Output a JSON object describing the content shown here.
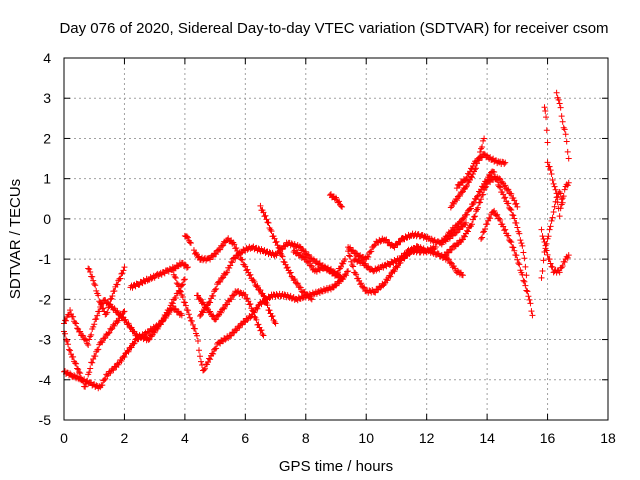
{
  "chart_data": {
    "type": "scatter",
    "title": "Day 076 of 2020, Sidereal Day-to-day VTEC variation (SDTVAR) for receiver csom",
    "xlabel": "GPS time / hours",
    "ylabel": "SDTVAR / TECUs",
    "xlim": [
      0,
      18
    ],
    "ylim": [
      -5,
      4
    ],
    "xticks": [
      0,
      2,
      4,
      6,
      8,
      10,
      12,
      14,
      16,
      18
    ],
    "yticks": [
      -5,
      -4,
      -3,
      -2,
      -1,
      0,
      1,
      2,
      3,
      4
    ],
    "grid": true,
    "marker": "+",
    "color": "#ff0000",
    "tracks": [
      [
        [
          0.0,
          -2.6
        ],
        [
          0.2,
          -2.3
        ],
        [
          0.5,
          -2.8
        ],
        [
          0.8,
          -3.1
        ],
        [
          1.0,
          -2.6
        ],
        [
          1.3,
          -2.0
        ],
        [
          1.6,
          -2.2
        ],
        [
          2.0,
          -2.5
        ],
        [
          2.4,
          -2.9
        ],
        [
          2.8,
          -3.0
        ],
        [
          3.2,
          -2.6
        ],
        [
          3.6,
          -2.2
        ],
        [
          3.9,
          -2.4
        ]
      ],
      [
        [
          0.0,
          -2.8
        ],
        [
          0.2,
          -3.3
        ],
        [
          0.5,
          -3.8
        ],
        [
          0.7,
          -4.2
        ],
        [
          0.9,
          -3.6
        ],
        [
          1.2,
          -3.1
        ],
        [
          1.5,
          -2.8
        ],
        [
          1.8,
          -2.5
        ],
        [
          2.0,
          -2.3
        ]
      ],
      [
        [
          0.0,
          -3.8
        ],
        [
          0.3,
          -3.9
        ],
        [
          0.6,
          -4.0
        ],
        [
          0.9,
          -4.1
        ],
        [
          1.2,
          -4.2
        ],
        [
          1.4,
          -3.9
        ],
        [
          1.8,
          -3.6
        ],
        [
          2.1,
          -3.3
        ],
        [
          2.4,
          -3.0
        ],
        [
          2.8,
          -2.8
        ],
        [
          3.2,
          -2.6
        ],
        [
          3.5,
          -2.2
        ],
        [
          3.8,
          -1.8
        ],
        [
          4.0,
          -1.5
        ]
      ],
      [
        [
          0.8,
          -1.2
        ],
        [
          1.0,
          -1.6
        ],
        [
          1.2,
          -2.1
        ],
        [
          1.4,
          -2.4
        ],
        [
          1.5,
          -2.1
        ],
        [
          1.7,
          -1.7
        ],
        [
          1.9,
          -1.4
        ],
        [
          2.0,
          -1.2
        ]
      ],
      [
        [
          2.2,
          -1.7
        ],
        [
          2.5,
          -1.6
        ],
        [
          2.8,
          -1.5
        ],
        [
          3.1,
          -1.4
        ],
        [
          3.4,
          -1.3
        ],
        [
          3.7,
          -1.2
        ],
        [
          3.9,
          -1.1
        ],
        [
          4.1,
          -1.2
        ]
      ],
      [
        [
          3.6,
          -1.3
        ],
        [
          3.9,
          -1.9
        ],
        [
          4.2,
          -2.5
        ],
        [
          4.4,
          -2.9
        ],
        [
          4.5,
          -3.4
        ],
        [
          4.6,
          -3.8
        ],
        [
          4.8,
          -3.5
        ],
        [
          5.1,
          -3.1
        ],
        [
          5.5,
          -2.9
        ],
        [
          5.9,
          -2.6
        ],
        [
          6.2,
          -2.4
        ],
        [
          6.5,
          -2.1
        ],
        [
          6.9,
          -1.9
        ],
        [
          7.3,
          -1.9
        ],
        [
          7.7,
          -2.0
        ],
        [
          8.1,
          -1.9
        ],
        [
          8.5,
          -1.8
        ],
        [
          8.9,
          -1.7
        ],
        [
          9.2,
          -1.5
        ],
        [
          9.4,
          -1.3
        ]
      ],
      [
        [
          4.0,
          -0.4
        ],
        [
          4.1,
          -0.5
        ],
        [
          4.2,
          -0.6
        ]
      ],
      [
        [
          4.3,
          -0.8
        ],
        [
          4.5,
          -1.0
        ],
        [
          4.8,
          -1.0
        ],
        [
          5.1,
          -0.8
        ],
        [
          5.4,
          -0.5
        ],
        [
          5.6,
          -0.6
        ],
        [
          5.8,
          -0.9
        ],
        [
          6.0,
          -1.2
        ],
        [
          6.3,
          -1.6
        ],
        [
          6.6,
          -1.9
        ],
        [
          6.8,
          -2.3
        ],
        [
          7.0,
          -2.6
        ]
      ],
      [
        [
          4.4,
          -1.9
        ],
        [
          4.7,
          -2.2
        ],
        [
          5.0,
          -2.5
        ],
        [
          5.2,
          -2.3
        ],
        [
          5.5,
          -2.0
        ],
        [
          5.7,
          -1.8
        ],
        [
          6.0,
          -1.9
        ],
        [
          6.2,
          -2.2
        ],
        [
          6.4,
          -2.6
        ],
        [
          6.6,
          -2.9
        ]
      ],
      [
        [
          4.5,
          -2.4
        ],
        [
          4.8,
          -2.1
        ],
        [
          5.1,
          -1.6
        ],
        [
          5.4,
          -1.3
        ],
        [
          5.6,
          -1.0
        ],
        [
          5.9,
          -0.8
        ],
        [
          6.2,
          -0.7
        ],
        [
          6.6,
          -0.8
        ],
        [
          7.0,
          -0.9
        ],
        [
          7.4,
          -0.6
        ],
        [
          7.8,
          -0.7
        ],
        [
          8.2,
          -1.0
        ],
        [
          8.6,
          -1.2
        ],
        [
          9.0,
          -1.4
        ],
        [
          9.3,
          -1.0
        ]
      ],
      [
        [
          6.5,
          0.3
        ],
        [
          6.7,
          0.0
        ],
        [
          6.9,
          -0.4
        ],
        [
          7.1,
          -0.7
        ],
        [
          7.3,
          -1.1
        ],
        [
          7.6,
          -1.5
        ],
        [
          7.9,
          -1.8
        ],
        [
          8.2,
          -2.0
        ]
      ],
      [
        [
          7.6,
          -0.8
        ],
        [
          8.0,
          -1.0
        ],
        [
          8.3,
          -1.3
        ],
        [
          8.6,
          -1.2
        ],
        [
          8.9,
          -1.3
        ],
        [
          9.2,
          -1.5
        ]
      ],
      [
        [
          8.8,
          0.6
        ],
        [
          9.0,
          0.5
        ],
        [
          9.2,
          0.3
        ]
      ],
      [
        [
          9.4,
          -0.8
        ],
        [
          9.6,
          -1.3
        ],
        [
          9.8,
          -1.6
        ],
        [
          10.0,
          -1.8
        ],
        [
          10.3,
          -1.8
        ],
        [
          10.6,
          -1.6
        ],
        [
          10.9,
          -1.3
        ],
        [
          11.2,
          -1.0
        ],
        [
          11.5,
          -0.8
        ],
        [
          11.8,
          -0.8
        ],
        [
          12.1,
          -0.8
        ],
        [
          12.4,
          -0.9
        ],
        [
          12.7,
          -1.0
        ],
        [
          13.0,
          -1.3
        ],
        [
          13.2,
          -1.4
        ]
      ],
      [
        [
          9.4,
          -0.7
        ],
        [
          9.7,
          -0.9
        ],
        [
          10.0,
          -1.0
        ],
        [
          10.3,
          -0.6
        ],
        [
          10.6,
          -0.5
        ],
        [
          10.9,
          -0.7
        ],
        [
          11.2,
          -0.5
        ],
        [
          11.5,
          -0.4
        ],
        [
          11.8,
          -0.4
        ],
        [
          12.1,
          -0.5
        ],
        [
          12.4,
          -0.6
        ],
        [
          12.7,
          -0.5
        ],
        [
          13.0,
          -0.3
        ],
        [
          13.3,
          -0.1
        ]
      ],
      [
        [
          9.6,
          -1.0
        ],
        [
          9.9,
          -1.1
        ],
        [
          10.2,
          -1.3
        ],
        [
          10.5,
          -1.2
        ],
        [
          10.8,
          -1.1
        ],
        [
          11.1,
          -1.0
        ],
        [
          11.4,
          -0.8
        ],
        [
          11.7,
          -0.7
        ],
        [
          12.0,
          -0.8
        ],
        [
          12.3,
          -0.7
        ]
      ],
      [
        [
          12.5,
          -0.6
        ],
        [
          12.8,
          -0.3
        ],
        [
          13.1,
          -0.1
        ],
        [
          13.4,
          0.2
        ],
        [
          13.7,
          0.6
        ],
        [
          14.0,
          1.0
        ],
        [
          14.2,
          1.2
        ],
        [
          14.4,
          0.8
        ],
        [
          14.6,
          0.5
        ],
        [
          14.8,
          0.2
        ],
        [
          15.0,
          -0.2
        ],
        [
          15.2,
          -0.8
        ],
        [
          15.3,
          -1.4
        ]
      ],
      [
        [
          12.6,
          -0.9
        ],
        [
          12.9,
          -0.7
        ],
        [
          13.2,
          -0.5
        ],
        [
          13.5,
          -0.1
        ],
        [
          13.7,
          0.3
        ],
        [
          13.9,
          0.7
        ],
        [
          14.0,
          0.9
        ],
        [
          14.2,
          1.0
        ],
        [
          14.4,
          1.0
        ],
        [
          14.6,
          0.8
        ],
        [
          14.8,
          0.6
        ],
        [
          15.0,
          0.3
        ]
      ],
      [
        [
          13.8,
          -0.5
        ],
        [
          14.0,
          -0.1
        ],
        [
          14.2,
          0.2
        ],
        [
          14.4,
          0.0
        ],
        [
          14.6,
          -0.3
        ],
        [
          14.8,
          -0.6
        ],
        [
          15.0,
          -1.0
        ],
        [
          15.2,
          -1.5
        ],
        [
          15.4,
          -2.0
        ],
        [
          15.5,
          -2.4
        ]
      ],
      [
        [
          13.0,
          0.8
        ],
        [
          13.3,
          1.0
        ],
        [
          13.6,
          1.4
        ],
        [
          13.9,
          1.6
        ],
        [
          14.1,
          1.5
        ],
        [
          14.4,
          1.4
        ],
        [
          14.6,
          1.4
        ]
      ],
      [
        [
          12.8,
          0.3
        ],
        [
          13.0,
          0.5
        ],
        [
          13.3,
          0.8
        ],
        [
          13.6,
          1.2
        ],
        [
          13.9,
          2.0
        ]
      ],
      [
        [
          15.8,
          -0.3
        ],
        [
          16.0,
          -0.9
        ],
        [
          16.2,
          -1.3
        ],
        [
          16.4,
          -1.3
        ],
        [
          16.6,
          -1.0
        ],
        [
          16.7,
          -0.9
        ]
      ],
      [
        [
          16.0,
          1.4
        ],
        [
          16.1,
          1.2
        ],
        [
          16.2,
          0.9
        ],
        [
          16.3,
          0.6
        ],
        [
          16.4,
          0.1
        ],
        [
          16.5,
          0.5
        ],
        [
          16.6,
          0.8
        ],
        [
          16.7,
          0.9
        ]
      ],
      [
        [
          16.3,
          3.1
        ],
        [
          16.4,
          2.9
        ],
        [
          16.5,
          2.4
        ],
        [
          16.6,
          2.1
        ],
        [
          16.7,
          1.5
        ]
      ],
      [
        [
          15.8,
          -1.5
        ],
        [
          15.9,
          -0.8
        ],
        [
          16.0,
          -0.5
        ],
        [
          16.1,
          -0.2
        ],
        [
          16.2,
          0.2
        ],
        [
          16.3,
          0.5
        ],
        [
          16.4,
          0.7
        ],
        [
          16.5,
          0.4
        ]
      ],
      [
        [
          15.9,
          2.8
        ],
        [
          15.95,
          2.5
        ],
        [
          16.0,
          1.9
        ]
      ]
    ]
  }
}
